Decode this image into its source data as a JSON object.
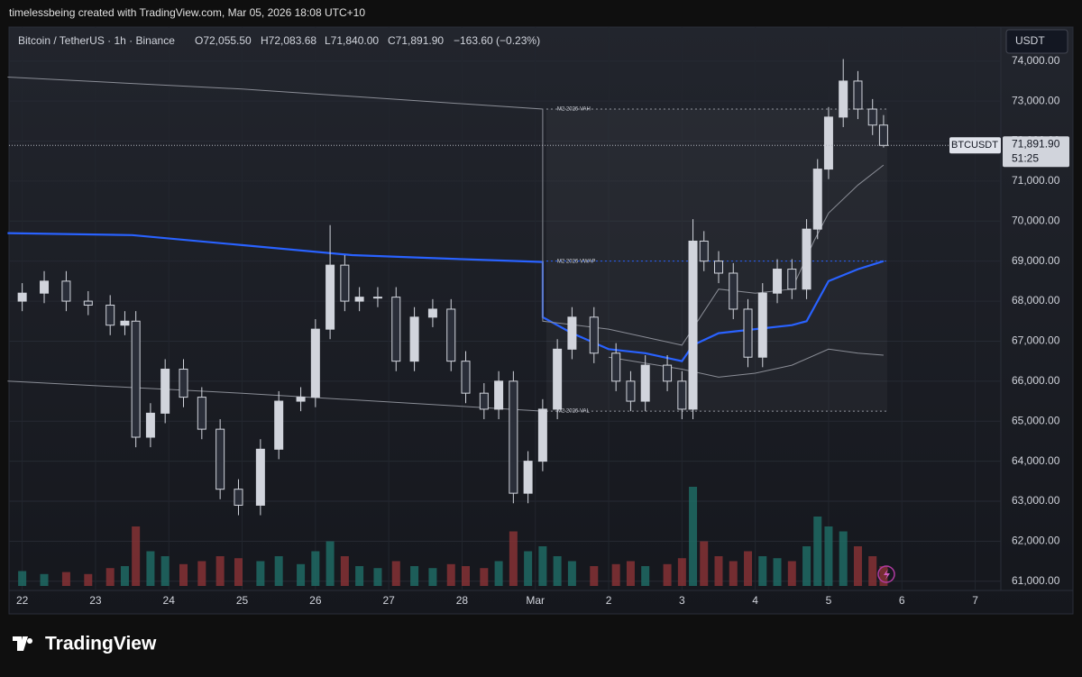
{
  "header": {
    "attribution": "timelessbeing created with TradingView.com, Mar 05, 2026 18:08 UTC+10",
    "symbol": "Bitcoin / TetherUS · 1h · Binance",
    "ohlc": [
      "O72,055.50",
      "H72,083.68",
      "L71,840.00",
      "C71,891.90"
    ],
    "change": "−163.60 (−0.23%)",
    "currency": "USDT"
  },
  "brand": "TradingView",
  "chart_data": {
    "type": "candlestick",
    "up_color": "#d1d4dc",
    "down_color": "#2a2e39",
    "volume_up_color": "#1f6f68",
    "volume_down_color": "#8c3336",
    "x": [
      0,
      0.3,
      0.6,
      0.9,
      1.2,
      1.4,
      1.55,
      1.75,
      1.95,
      2.2,
      2.45,
      2.7,
      2.95,
      3.25,
      3.5,
      3.8,
      4.0,
      4.2,
      4.4,
      4.6,
      4.85,
      5.1,
      5.35,
      5.6,
      5.85,
      6.05,
      6.3,
      6.5,
      6.7,
      6.9,
      7.1,
      7.3,
      7.5,
      7.8,
      8.1,
      8.3,
      8.5,
      8.8,
      9.0,
      9.15,
      9.3,
      9.5,
      9.7,
      9.9,
      10.1,
      10.3,
      10.5,
      10.7,
      10.85,
      11.0,
      11.2,
      11.4,
      11.6,
      11.75
    ],
    "open": [
      68000,
      68200,
      68500,
      68000,
      67900,
      67400,
      67500,
      64600,
      65200,
      66300,
      65600,
      64800,
      63300,
      62900,
      64300,
      65500,
      65600,
      67300,
      68900,
      68000,
      68100,
      68100,
      66500,
      67600,
      67800,
      66500,
      65700,
      65300,
      66000,
      63200,
      64000,
      65300,
      66800,
      67600,
      66700,
      66000,
      65500,
      66400,
      66000,
      65300,
      69500,
      69000,
      68700,
      67800,
      66600,
      68200,
      68800,
      68300,
      69800,
      71300,
      72600,
      73500,
      72800,
      72400
    ],
    "high": [
      68450,
      68750,
      68750,
      68250,
      68150,
      67750,
      67750,
      65450,
      66550,
      66550,
      65850,
      65050,
      63550,
      64550,
      65750,
      65850,
      67550,
      69900,
      69150,
      68350,
      68350,
      68350,
      67850,
      68050,
      68050,
      66750,
      65950,
      66250,
      66250,
      64250,
      65550,
      67050,
      67850,
      67850,
      66950,
      66250,
      66650,
      66650,
      66250,
      70050,
      69750,
      69250,
      68950,
      68050,
      68450,
      69050,
      69050,
      70050,
      71550,
      72850,
      74050,
      73750,
      73050,
      72650
    ],
    "low": [
      67750,
      67950,
      67750,
      67650,
      67150,
      67150,
      64350,
      64350,
      64950,
      65350,
      64550,
      63050,
      62650,
      62650,
      64050,
      65250,
      65350,
      67050,
      67750,
      67750,
      67850,
      66250,
      66250,
      67350,
      66250,
      65450,
      65050,
      65050,
      62950,
      62950,
      63750,
      65050,
      66550,
      66450,
      65750,
      65250,
      65250,
      65750,
      65050,
      65050,
      68750,
      68450,
      67550,
      66350,
      66350,
      67950,
      68050,
      68050,
      69550,
      71050,
      72350,
      72550,
      72150,
      71840
    ],
    "close": [
      68200,
      68500,
      68000,
      67900,
      67400,
      67500,
      64600,
      65200,
      66300,
      65600,
      64800,
      63300,
      62900,
      64300,
      65500,
      65600,
      67300,
      68900,
      68000,
      68100,
      68100,
      66500,
      67600,
      67800,
      66500,
      65700,
      65300,
      66000,
      63200,
      64000,
      65300,
      66800,
      67600,
      66700,
      66000,
      65500,
      66400,
      66000,
      65300,
      69500,
      69000,
      68700,
      67800,
      66600,
      68200,
      68800,
      68300,
      69800,
      71300,
      72600,
      73500,
      72800,
      72400,
      71892
    ],
    "volume": [
      15,
      12,
      14,
      12,
      18,
      20,
      60,
      35,
      30,
      22,
      25,
      30,
      28,
      25,
      30,
      22,
      35,
      45,
      30,
      20,
      18,
      25,
      20,
      18,
      22,
      20,
      18,
      25,
      55,
      35,
      40,
      30,
      25,
      20,
      22,
      25,
      20,
      22,
      28,
      100,
      45,
      30,
      25,
      35,
      30,
      28,
      25,
      40,
      70,
      60,
      55,
      40,
      30,
      20
    ],
    "lines": [
      {
        "color": "#2962ff",
        "width": 2.2,
        "x": [
          -0.2,
          1.5,
          3,
          4.5,
          6,
          7.1,
          7.1,
          7.5,
          8.0,
          8.5,
          9.0,
          9.15,
          9.5,
          10.0,
          10.5,
          10.7,
          11.0,
          11.4,
          11.75
        ],
        "values": [
          69700,
          69650,
          69400,
          69150,
          69050,
          68980,
          67600,
          67200,
          66800,
          66700,
          66500,
          66900,
          67200,
          67300,
          67400,
          67500,
          68500,
          68800,
          69000
        ]
      },
      {
        "color": "#8a8d96",
        "width": 1,
        "x": [
          -0.2,
          3,
          7.1,
          7.1,
          8,
          9,
          9.5,
          10,
          10.5,
          10.8,
          11,
          11.4,
          11.75
        ],
        "values": [
          73600,
          73300,
          72800,
          67500,
          67300,
          66900,
          68300,
          68200,
          68300,
          69500,
          70200,
          70900,
          71400
        ]
      },
      {
        "color": "#8a8d96",
        "width": 1,
        "x": [
          -0.2,
          3,
          7.1,
          7.1,
          8,
          9,
          9.5,
          10,
          10.5,
          11,
          11.4,
          11.75
        ],
        "values": [
          66000,
          65700,
          65250,
          null,
          66600,
          66300,
          66100,
          66200,
          66400,
          66800,
          66700,
          66650
        ]
      }
    ],
    "levels": [
      {
        "label": "M2 2026 VAH",
        "value": 72800,
        "color": "#9598a1"
      },
      {
        "label": "M2 2026 VWAP",
        "value": 69000,
        "color": "#2962ff"
      },
      {
        "label": "M2 2026 VAL",
        "value": 65250,
        "color": "#9598a1"
      }
    ],
    "level_x": [
      7.15,
      11.8
    ],
    "last_price": {
      "symbol": "BTCUSDT",
      "value": 71891.9,
      "label": "71,891.90",
      "countdown": "51:25"
    },
    "xlim": [
      -0.18,
      13.35
    ],
    "ylim": [
      60770,
      74850
    ],
    "yticks": [
      {
        "value": 61000,
        "label": "61,000.00"
      },
      {
        "value": 62000,
        "label": "62,000.00"
      },
      {
        "value": 63000,
        "label": "63,000.00"
      },
      {
        "value": 64000,
        "label": "64,000.00"
      },
      {
        "value": 65000,
        "label": "65,000.00"
      },
      {
        "value": 66000,
        "label": "66,000.00"
      },
      {
        "value": 67000,
        "label": "67,000.00"
      },
      {
        "value": 68000,
        "label": "68,000.00"
      },
      {
        "value": 69000,
        "label": "69,000.00"
      },
      {
        "value": 70000,
        "label": "70,000.00"
      },
      {
        "value": 71000,
        "label": "71,000.00"
      },
      {
        "value": 72000,
        "label": "72,000.00"
      },
      {
        "value": 73000,
        "label": "73,000.00"
      },
      {
        "value": 74000,
        "label": "74,000.00"
      }
    ],
    "xticks": [
      {
        "value": 0,
        "label": "22"
      },
      {
        "value": 1,
        "label": "23"
      },
      {
        "value": 2,
        "label": "24"
      },
      {
        "value": 3,
        "label": "25"
      },
      {
        "value": 4,
        "label": "26"
      },
      {
        "value": 5,
        "label": "27"
      },
      {
        "value": 6,
        "label": "28"
      },
      {
        "value": 7,
        "label": "Mar"
      },
      {
        "value": 8,
        "label": "2"
      },
      {
        "value": 9,
        "label": "3"
      },
      {
        "value": 10,
        "label": "4"
      },
      {
        "value": 11,
        "label": "5"
      },
      {
        "value": 12,
        "label": "6"
      },
      {
        "value": 13,
        "label": "7"
      }
    ]
  }
}
